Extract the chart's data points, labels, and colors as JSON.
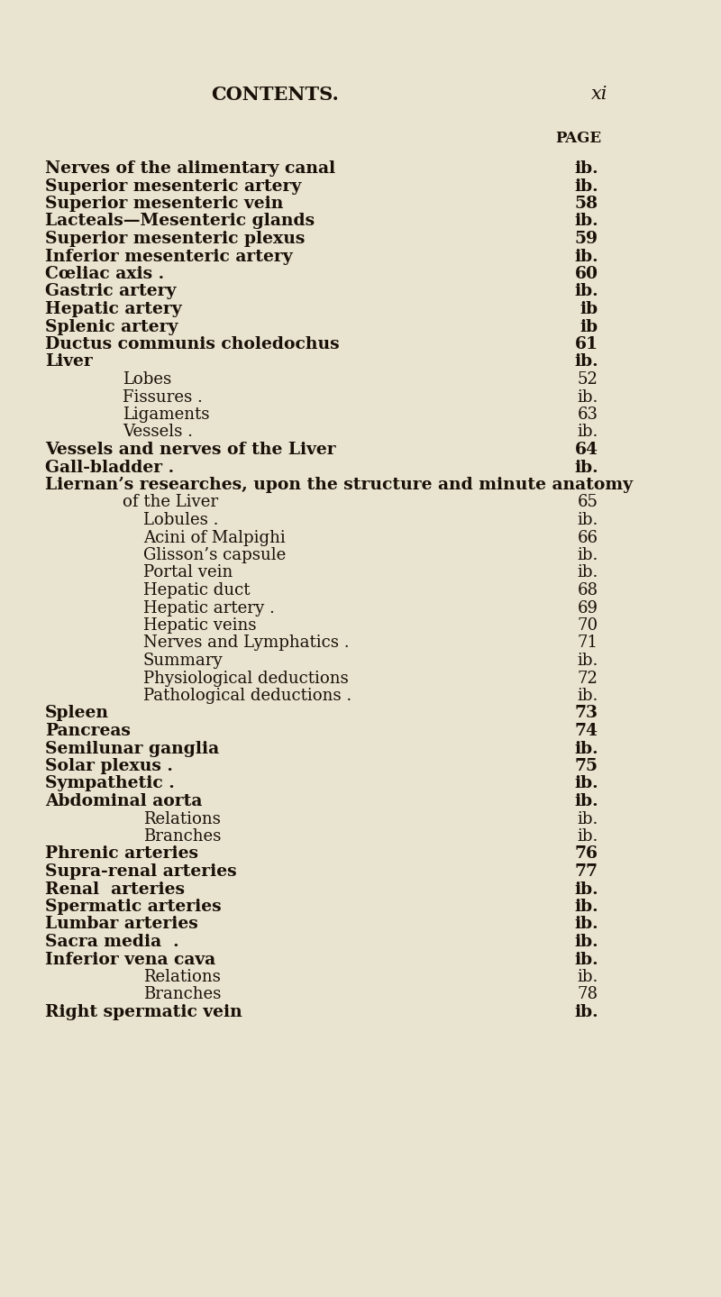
{
  "bg_color": "#e8e4d0",
  "title": "CONTENTS.",
  "page_label": "xi",
  "page_header": "PAGE",
  "entries": [
    {
      "text": "Nerves of the alimentary canal",
      "indent": 0,
      "page": "ib."
    },
    {
      "text": "Superior mesenteric artery",
      "indent": 0,
      "page": "ib."
    },
    {
      "text": "Superior mesenteric vein",
      "indent": 0,
      "page": "58"
    },
    {
      "text": "Lacteals—Mesenteric glands",
      "indent": 0,
      "page": "ib."
    },
    {
      "text": "Superior mesenteric plexus",
      "indent": 0,
      "page": "59"
    },
    {
      "text": "Inferior mesenteric artery",
      "indent": 0,
      "page": "ib."
    },
    {
      "text": "Cœliac axis .",
      "indent": 0,
      "page": "60"
    },
    {
      "text": "Gastric artery",
      "indent": 0,
      "page": "ib."
    },
    {
      "text": "Hepatic artery",
      "indent": 0,
      "page": "ib"
    },
    {
      "text": "Splenic artery",
      "indent": 0,
      "page": "ib"
    },
    {
      "text": "Ductus communis choledochus",
      "indent": 0,
      "page": "61"
    },
    {
      "text": "Liver",
      "indent": 0,
      "page": "ib."
    },
    {
      "text": "Lobes",
      "indent": 1,
      "page": "52"
    },
    {
      "text": "Fissures .",
      "indent": 1,
      "page": "ib."
    },
    {
      "text": "Ligaments",
      "indent": 1,
      "page": "63"
    },
    {
      "text": "Vessels .",
      "indent": 1,
      "page": "ib."
    },
    {
      "text": "Vessels and nerves of the Liver",
      "indent": 0,
      "page": "64"
    },
    {
      "text": "Gall-bladder .",
      "indent": 0,
      "page": "ib."
    },
    {
      "text": "Liernan’s researches, upon the structure and minute anatomy",
      "indent": 0,
      "page": ""
    },
    {
      "text": "of the Liver",
      "indent": 1,
      "page": "65"
    },
    {
      "text": "Lobules .",
      "indent": 2,
      "page": "ib."
    },
    {
      "text": "Acini of Malpighi",
      "indent": 2,
      "page": "66"
    },
    {
      "text": "Glisson’s capsule",
      "indent": 2,
      "page": "ib."
    },
    {
      "text": "Portal vein",
      "indent": 2,
      "page": "ib."
    },
    {
      "text": "Hepatic duct",
      "indent": 2,
      "page": "68"
    },
    {
      "text": "Hepatic artery .",
      "indent": 2,
      "page": "69"
    },
    {
      "text": "Hepatic veins",
      "indent": 2,
      "page": "70"
    },
    {
      "text": "Nerves and Lymphatics .",
      "indent": 2,
      "page": "71"
    },
    {
      "text": "Summary",
      "indent": 2,
      "page": "ib."
    },
    {
      "text": "Physiological deductions",
      "indent": 2,
      "page": "72"
    },
    {
      "text": "Pathological deductions .",
      "indent": 2,
      "page": "ib."
    },
    {
      "text": "Spleen",
      "indent": 0,
      "page": "73"
    },
    {
      "text": "Pancreas",
      "indent": 0,
      "page": "74"
    },
    {
      "text": "Semilunar ganglia",
      "indent": 0,
      "page": "ib."
    },
    {
      "text": "Solar plexus .",
      "indent": 0,
      "page": "75"
    },
    {
      "text": "Sympathetic .",
      "indent": 0,
      "page": "ib."
    },
    {
      "text": "Abdominal aorta",
      "indent": 0,
      "page": "ib."
    },
    {
      "text": "Relations",
      "indent": 2,
      "page": "ib."
    },
    {
      "text": "Branches",
      "indent": 2,
      "page": "ib."
    },
    {
      "text": "Phrenic arteries",
      "indent": 0,
      "page": "76"
    },
    {
      "text": "Supra-renal arteries",
      "indent": 0,
      "page": "77"
    },
    {
      "text": "Renal  arteries",
      "indent": 0,
      "page": "ib."
    },
    {
      "text": "Spermatic arteries",
      "indent": 0,
      "page": "ib."
    },
    {
      "text": "Lumbar arteries",
      "indent": 0,
      "page": "ib."
    },
    {
      "text": "Sacra media  .",
      "indent": 0,
      "page": "ib."
    },
    {
      "text": "Inferior vena cava",
      "indent": 0,
      "page": "ib."
    },
    {
      "text": "Relations",
      "indent": 2,
      "page": "ib."
    },
    {
      "text": "Branches",
      "indent": 2,
      "page": "78"
    },
    {
      "text": "Right spermatic vein",
      "indent": 0,
      "page": "ib."
    }
  ],
  "text_color": "#1a1008",
  "title_fontsize": 15,
  "entry_fontsize": 13.5,
  "page_label_fontsize": 13.5,
  "header_fontsize": 12
}
